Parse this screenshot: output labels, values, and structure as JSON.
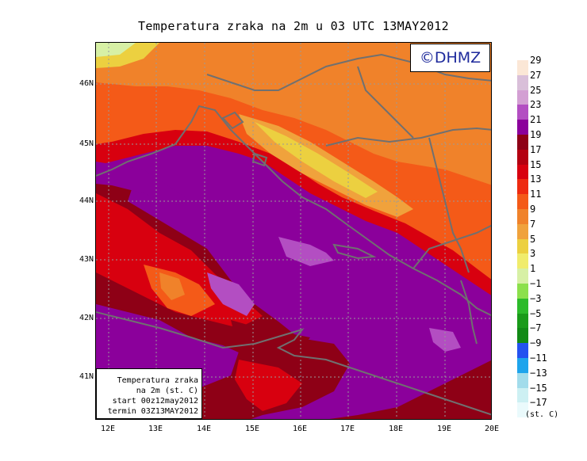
{
  "title": "Temperatura zraka na 2m u 03 UTC 13MAY2012",
  "copyright": "©DHMZ",
  "info_box": {
    "line1": "Temperatura zraka",
    "line2": "na 2m (st. C)",
    "line3": "start 00z12may2012",
    "line4": "termin 03Z13MAY2012"
  },
  "lat_labels": [
    "46N",
    "45N",
    "44N",
    "43N",
    "42N",
    "41N"
  ],
  "lon_labels": [
    "12E",
    "13E",
    "14E",
    "15E",
    "16E",
    "17E",
    "18E",
    "19E",
    "20E"
  ],
  "legend": {
    "unit": "(st. C)",
    "labels": [
      "29",
      "27",
      "25",
      "23",
      "21",
      "19",
      "17",
      "15",
      "13",
      "11",
      "9",
      "7",
      "5",
      "3",
      "1",
      "−1",
      "−3",
      "−5",
      "−7",
      "−9",
      "−11",
      "−13",
      "−15",
      "−17"
    ],
    "colors": [
      "#fbe7d6",
      "#d9bfd9",
      "#d39fd3",
      "#b34ec2",
      "#8b009b",
      "#8e0016",
      "#b40010",
      "#d8000f",
      "#ee2a10",
      "#f45a18",
      "#f0822a",
      "#f0a23c",
      "#ecd040",
      "#f0ec6c",
      "#d7f0a5",
      "#8ce04c",
      "#2cbb2a",
      "#1a9b1a",
      "#128a16",
      "#2452f0",
      "#1ea4ec",
      "#a2dceb",
      "#cdf0f3",
      "#eafafc"
    ]
  },
  "colors": {
    "coastline": "#707070",
    "grid": "#9a9a9a",
    "copyright_text": "#1e2a9c"
  }
}
